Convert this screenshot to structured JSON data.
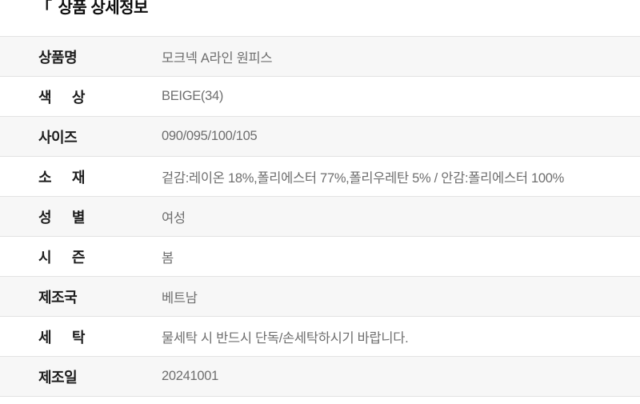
{
  "header": {
    "bracket": "「",
    "title": "상품 상세정보"
  },
  "table": {
    "rows": [
      {
        "label": "상품명",
        "value": "모크넥 A라인 원피스"
      },
      {
        "label": "색 상",
        "value": "BEIGE(34)"
      },
      {
        "label": "사이즈",
        "value": "090/095/100/105"
      },
      {
        "label": "소 재",
        "value": "겉감:레이온 18%,폴리에스터 77%,폴리우레탄 5% / 안감:폴리에스터 100%"
      },
      {
        "label": "성 별",
        "value": "여성"
      },
      {
        "label": "시 즌",
        "value": "봄"
      },
      {
        "label": "제조국",
        "value": "베트남"
      },
      {
        "label": "세 탁",
        "value": "물세탁 시 반드시 단독/손세탁하시기 바랍니다."
      },
      {
        "label": "제조일",
        "value": "20241001"
      }
    ]
  },
  "colors": {
    "row_alt_bg": "#f7f7f7",
    "row_bg": "#ffffff",
    "border": "#e3e3e3",
    "label_text": "#1c1c1c",
    "value_text": "#6e6e6e",
    "header_text": "#0d0d0d"
  }
}
